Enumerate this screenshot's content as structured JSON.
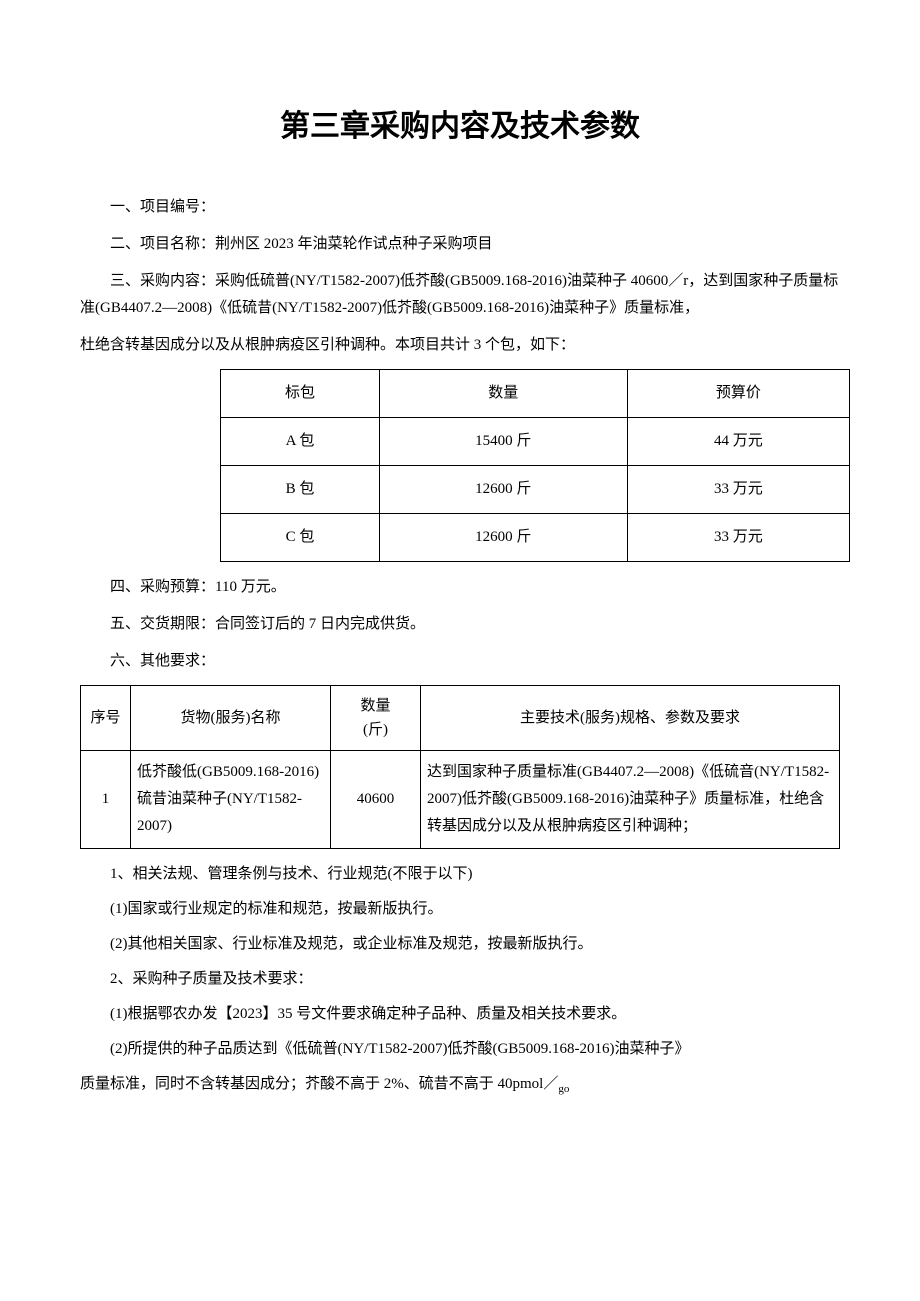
{
  "title": "第三章采购内容及技术参数",
  "sections": {
    "s1": "一、项目编号：",
    "s2": "二、项目名称：荆州区 2023 年油菜轮作试点种子采购项目",
    "s3_p1": "三、采购内容：采购低硫普(NY/T1582-2007)低芥酸(GB5009.168-2016)油菜种子 40600／r，达到国家种子质量标准(GB4407.2—2008)《低硫昔(NY/T1582-2007)低芥酸(GB5009.168-2016)油菜种子》质量标准，",
    "s3_p2": "杜绝含转基因成分以及从根肿病疫区引种调种。本项目共计 3 个包，如下：",
    "s4": "四、采购预算：110 万元。",
    "s5": "五、交货期限：合同签订后的 7 日内完成供货。",
    "s6": "六、其他要求："
  },
  "table1": {
    "headers": [
      "标包",
      "数量",
      "预算价"
    ],
    "rows": [
      [
        "A 包",
        "15400 斤",
        "44 万元"
      ],
      [
        "B 包",
        "12600 斤",
        "33 万元"
      ],
      [
        "C 包",
        "12600 斤",
        "33 万元"
      ]
    ],
    "col_widths": [
      "33%",
      "34%",
      "33%"
    ]
  },
  "table2": {
    "headers": {
      "seq": "序号",
      "name": "货物(服务)名称",
      "qty_l1": "数量",
      "qty_l2": "(斤)",
      "spec": "主要技术(服务)规格、参数及要求"
    },
    "rows": [
      {
        "seq": "1",
        "name": "低芥酸低(GB5009.168-2016)硫昔油菜种子(NY/T1582-2007)",
        "qty": "40600",
        "spec": "达到国家种子质量标准(GB4407.2—2008)《低硫音(NY/T1582-2007)低芥酸(GB5009.168-2016)油菜种子》质量标准，杜绝含转基因成分以及从根肿病疫区引种调种；"
      }
    ]
  },
  "footer": {
    "l1": "1、相关法规、管理条例与技术、行业规范(不限于以下)",
    "l2": "(1)国家或行业规定的标准和规范，按最新版执行。",
    "l3": "(2)其他相关国家、行业标准及规范，或企业标准及规范，按最新版执行。",
    "l4": "2、采购种子质量及技术要求：",
    "l5": "(1)根据鄂农办发【2023】35 号文件要求确定种子品种、质量及相关技术要求。",
    "l6_p1": "(2)所提供的种子品质达到《低硫普(NY/T1582-2007)低芥酸(GB5009.168-2016)油菜种子》",
    "l6_p2_prefix": "质量标准，同时不含转基因成分；芥酸不高于 2%、硫昔不高于 40pmol／",
    "l6_p2_sub": "go"
  },
  "colors": {
    "text": "#000000",
    "background": "#ffffff",
    "border": "#000000"
  },
  "typography": {
    "body_fontsize": 15,
    "title_fontsize": 30,
    "line_height": 1.8
  }
}
